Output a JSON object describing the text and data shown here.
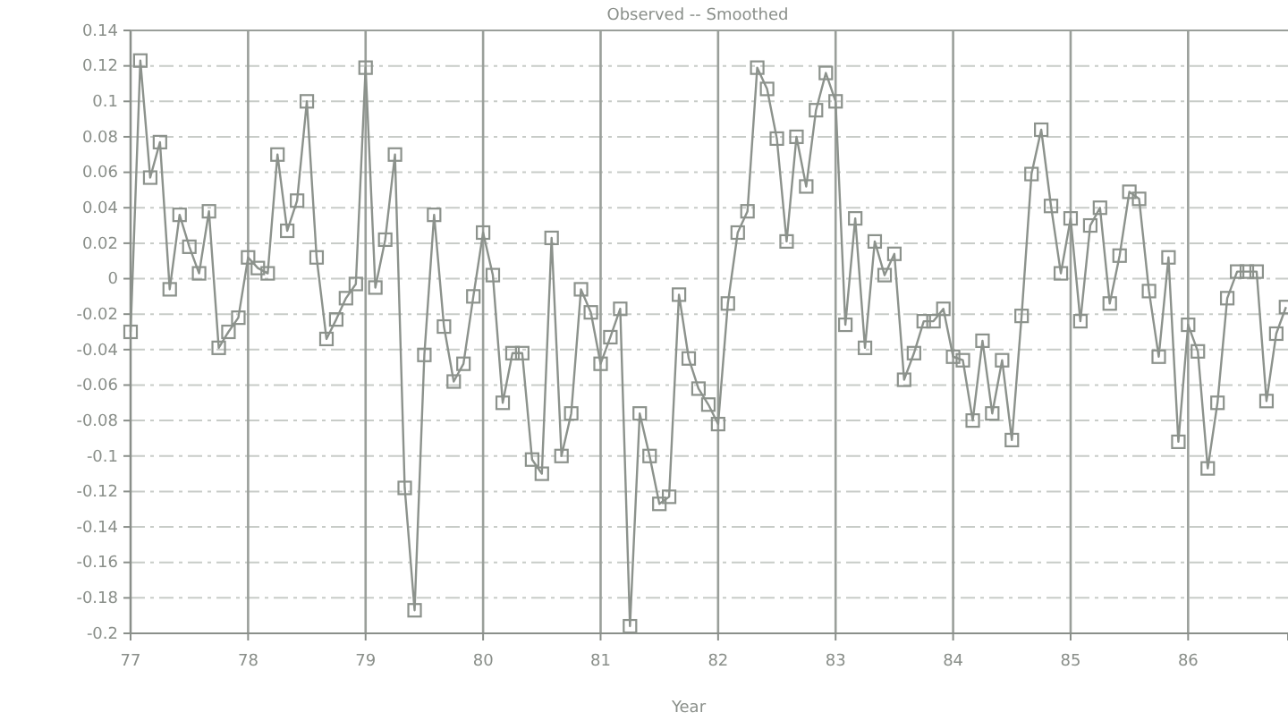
{
  "chart_data": {
    "type": "line",
    "title": "Observed -- Smoothed",
    "xlabel": "Year",
    "x": [
      77,
      77.083,
      77.167,
      77.25,
      77.333,
      77.417,
      77.5,
      77.583,
      77.667,
      77.75,
      77.833,
      77.917,
      78,
      78.083,
      78.167,
      78.25,
      78.333,
      78.417,
      78.5,
      78.583,
      78.667,
      78.75,
      78.833,
      78.917,
      79,
      79.083,
      79.167,
      79.25,
      79.333,
      79.417,
      79.5,
      79.583,
      79.667,
      79.75,
      79.833,
      79.917,
      80,
      80.083,
      80.167,
      80.25,
      80.333,
      80.417,
      80.5,
      80.583,
      80.667,
      80.75,
      80.833,
      80.917,
      81,
      81.083,
      81.167,
      81.25,
      81.333,
      81.417,
      81.5,
      81.583,
      81.667,
      81.75,
      81.833,
      81.917,
      82,
      82.083,
      82.167,
      82.25,
      82.333,
      82.417,
      82.5,
      82.583,
      82.667,
      82.75,
      82.833,
      82.917,
      83,
      83.083,
      83.167,
      83.25,
      83.333,
      83.417,
      83.5,
      83.583,
      83.667,
      83.75,
      83.833,
      83.917,
      84,
      84.083,
      84.167,
      84.25,
      84.333,
      84.417,
      84.5,
      84.583,
      84.667,
      84.75,
      84.833,
      84.917,
      85,
      85.083,
      85.167,
      85.25,
      85.333,
      85.417,
      85.5,
      85.583,
      85.667,
      85.75,
      85.833,
      85.917,
      86,
      86.083,
      86.167,
      86.25,
      86.333,
      86.417,
      86.5,
      86.583,
      86.667,
      86.75,
      86.833
    ],
    "series": [
      {
        "color": "#8c928c",
        "values": [
          -0.03,
          0.123,
          0.057,
          0.077,
          -0.006,
          0.036,
          0.018,
          0.003,
          0.038,
          -0.039,
          -0.03,
          -0.022,
          0.012,
          0.006,
          0.003,
          0.07,
          0.027,
          0.044,
          0.1,
          0.012,
          -0.034,
          -0.023,
          -0.011,
          -0.003,
          0.119,
          -0.005,
          0.022,
          0.07,
          -0.118,
          -0.187,
          -0.043,
          0.036,
          -0.027,
          -0.058,
          -0.048,
          -0.01,
          0.026,
          0.002,
          -0.07,
          -0.042,
          -0.042,
          -0.102,
          -0.11,
          0.023,
          -0.1,
          -0.076,
          -0.006,
          -0.019,
          -0.048,
          -0.033,
          -0.017,
          -0.196,
          -0.076,
          -0.1,
          -0.127,
          -0.123,
          -0.009,
          -0.045,
          -0.062,
          -0.071,
          -0.082,
          -0.014,
          0.026,
          0.038,
          0.119,
          0.107,
          0.079,
          0.021,
          0.08,
          0.052,
          0.095,
          0.116,
          0.1,
          -0.026,
          0.034,
          -0.039,
          0.021,
          0.002,
          0.014,
          -0.057,
          -0.042,
          -0.024,
          -0.024,
          -0.017,
          -0.044,
          -0.046,
          -0.08,
          -0.035,
          -0.076,
          -0.046,
          -0.091,
          -0.021,
          0.059,
          0.084,
          0.041,
          0.003,
          0.034,
          -0.024,
          0.03,
          0.04,
          -0.014,
          0.013,
          0.049,
          0.045,
          -0.007,
          -0.044,
          0.012,
          -0.092,
          -0.026,
          -0.041,
          -0.107,
          -0.07,
          -0.011,
          0.004,
          0.004,
          0.004,
          -0.069,
          -0.031,
          -0.016
        ]
      }
    ],
    "xlim": [
      77,
      86.85
    ],
    "xticks": [
      {
        "value": 77,
        "label": "77"
      },
      {
        "value": 78,
        "label": "78"
      },
      {
        "value": 79,
        "label": "79"
      },
      {
        "value": 80,
        "label": "80"
      },
      {
        "value": 81,
        "label": "81"
      },
      {
        "value": 82,
        "label": "82"
      },
      {
        "value": 83,
        "label": "83"
      },
      {
        "value": 84,
        "label": "84"
      },
      {
        "value": 85,
        "label": "85"
      },
      {
        "value": 86,
        "label": "86"
      }
    ],
    "ylim": [
      -0.2,
      0.14
    ],
    "yticks": [
      -0.2,
      -0.18,
      -0.16,
      -0.14,
      -0.12,
      -0.1,
      -0.08,
      -0.06,
      -0.04,
      -0.02,
      0,
      0.02,
      0.04,
      0.06,
      0.08,
      0.1,
      0.12,
      0.14
    ],
    "grid": true,
    "marker": "square",
    "line_style": "solid"
  }
}
